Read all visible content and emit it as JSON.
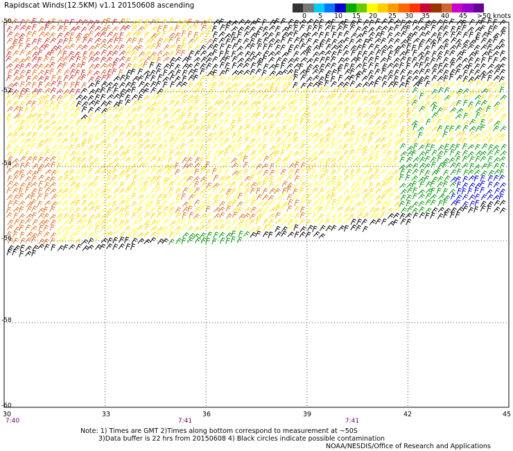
{
  "title": "Rapidscat Winds(12.5KM) v1.1 20150608 ascending",
  "legend": {
    "colors": [
      "#333333",
      "#777777",
      "#00ccff",
      "#0077ff",
      "#0000cc",
      "#00aa00",
      "#66cc00",
      "#ffff00",
      "#ffcc00",
      "#ff9900",
      "#ff6600",
      "#ff3300",
      "#cc0033",
      "#993300",
      "#cc6633",
      "#cc00cc",
      "#9900cc",
      "#660099"
    ],
    "labels": [
      "0",
      "5",
      "10",
      "15",
      "20",
      "25",
      "30",
      "35",
      "40",
      "45",
      ">50 knots"
    ]
  },
  "map": {
    "lat_labels": [
      "-50",
      "-52",
      "-54",
      "-56",
      "-58",
      "-60"
    ],
    "lon_labels": [
      "30",
      "33",
      "36",
      "39",
      "42",
      "45"
    ],
    "time_labels": [
      "7:40",
      "7:41",
      "7:41"
    ],
    "lat_range": [
      -60,
      -50
    ],
    "lon_range": [
      30,
      45
    ],
    "wind_regions": [
      {
        "name": "strong-winds",
        "color": "#cc3333",
        "speed_knots": 35
      },
      {
        "name": "strong-winds-orange",
        "color": "#e07020",
        "speed_knots": 30
      },
      {
        "name": "moderate-winds",
        "color": "#ffd800",
        "speed_knots": 20
      },
      {
        "name": "moderate-winds-light",
        "color": "#ffff33",
        "speed_knots": 20
      },
      {
        "name": "light-winds",
        "color": "#009900",
        "speed_knots": 15
      },
      {
        "name": "calm-winds",
        "color": "#0000cc",
        "speed_knots": 10
      },
      {
        "name": "rain-flagged",
        "color": "#000000",
        "speed_knots": 0
      }
    ]
  },
  "notes": {
    "line1": "Note: 1) Times are GMT 2)Times along bottom correspond to measurement at ~50S",
    "line2": "3)Data buffer is 22 hrs from 20150608 4) Black circles indicate possible contamination",
    "credit": "NOAA/NESDIS/Office of Research and Applications"
  }
}
